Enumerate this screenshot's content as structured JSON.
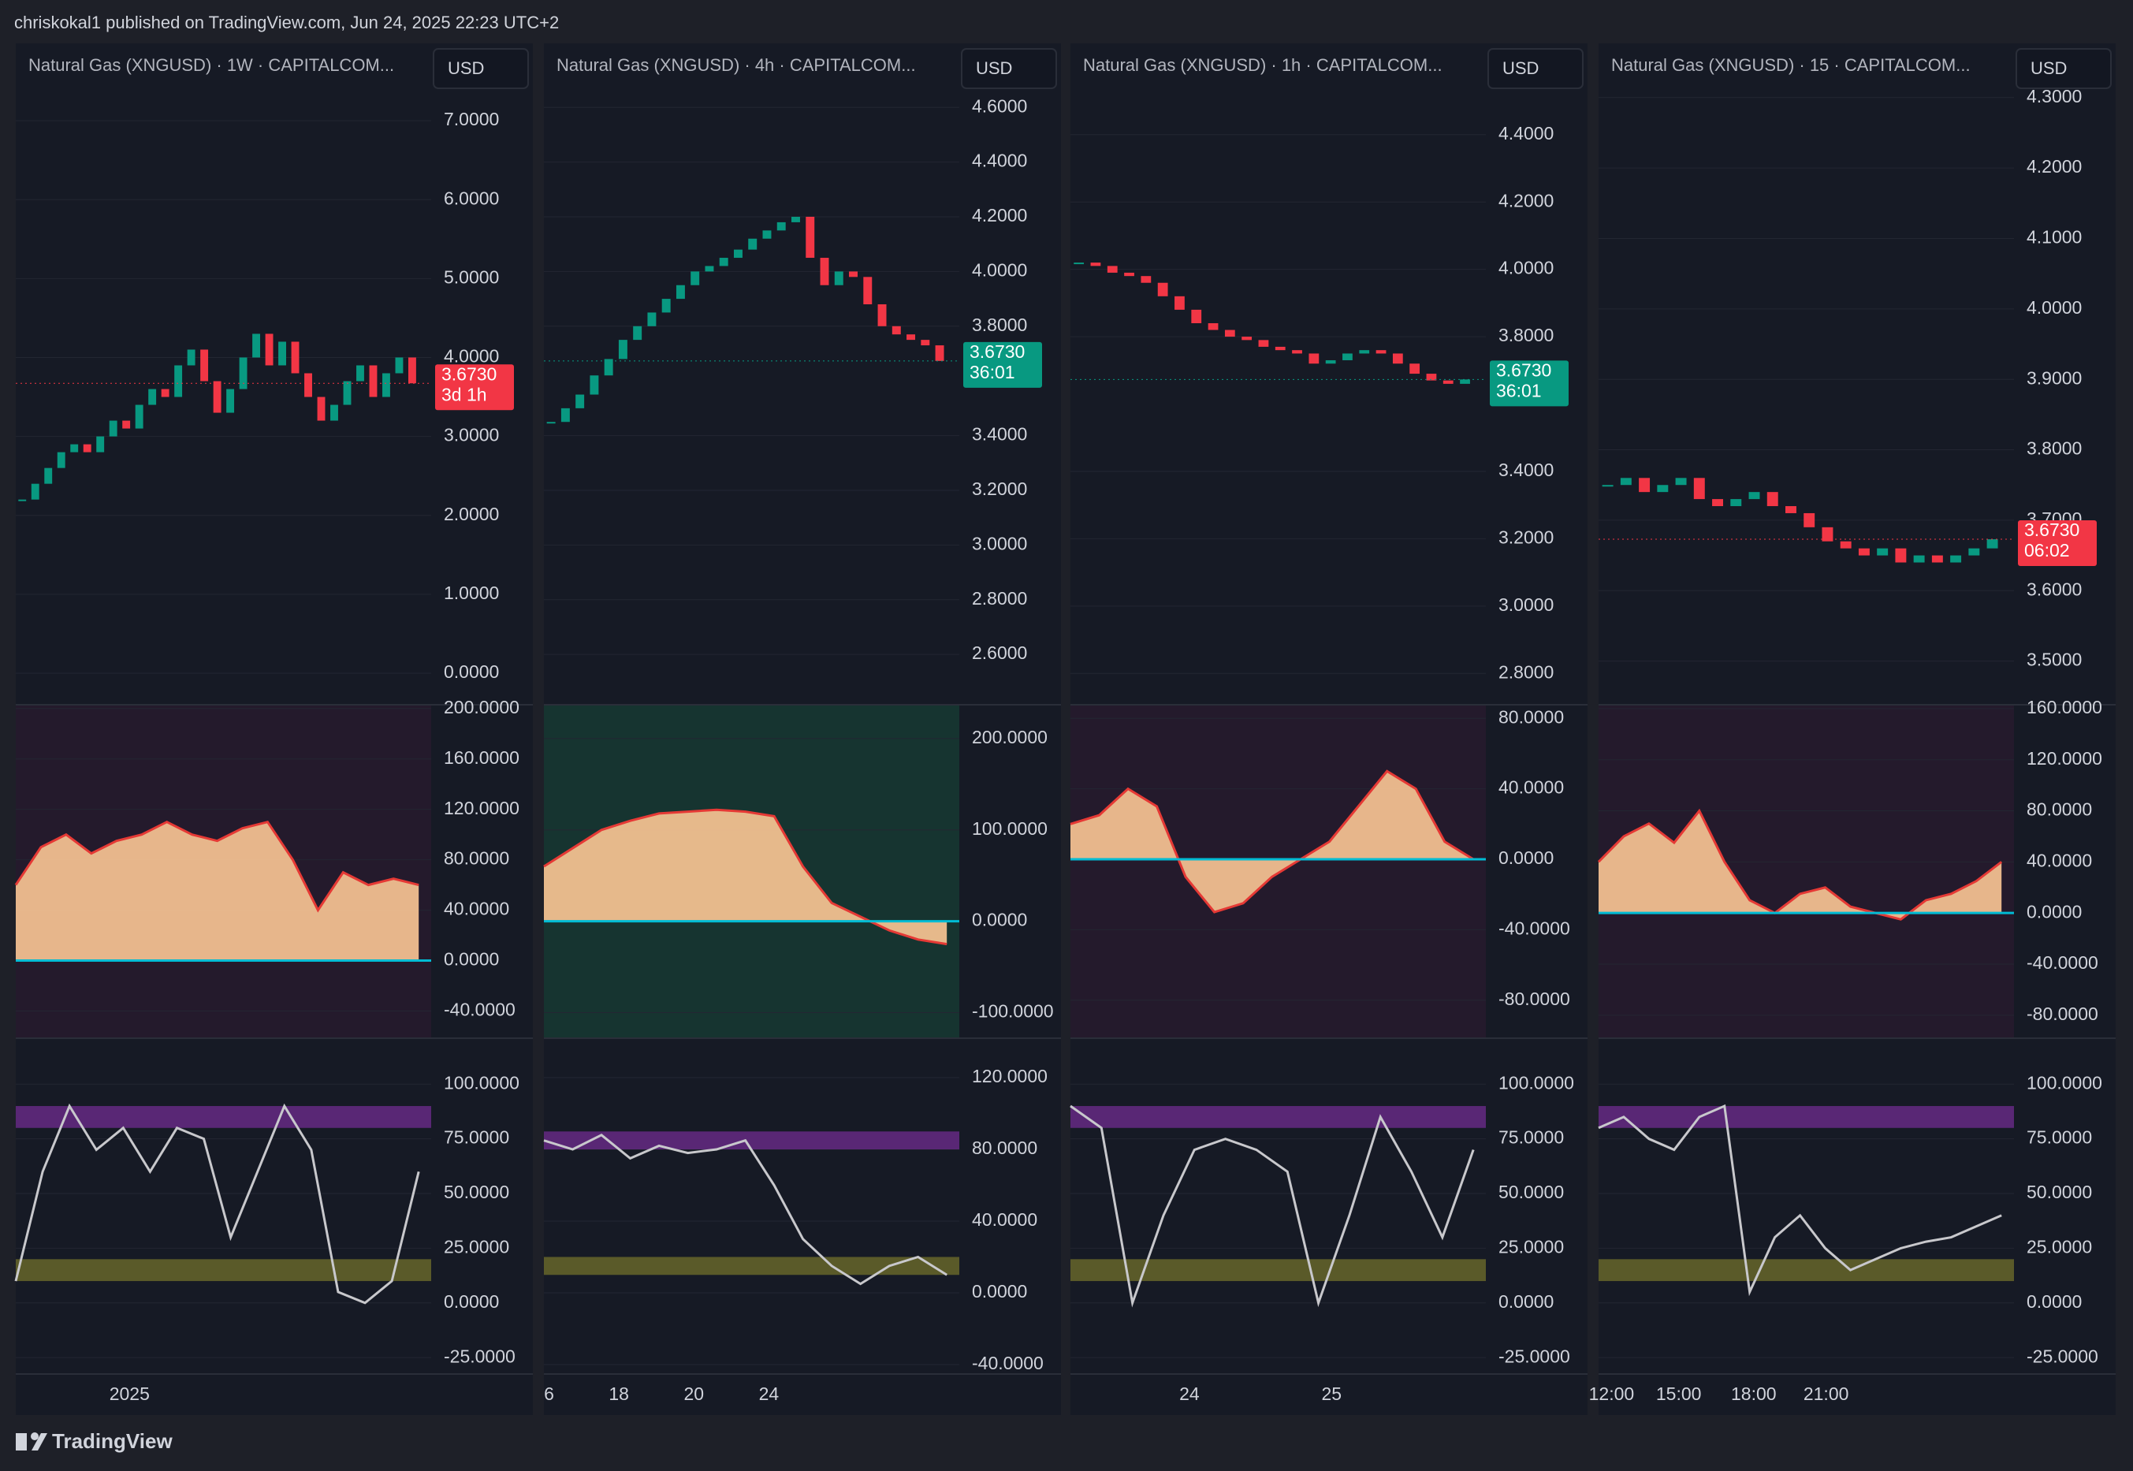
{
  "header": {
    "text": "chriskokal1 published on TradingView.com, Jun 24, 2025 22:23 UTC+2"
  },
  "footer": {
    "brand": "TradingView"
  },
  "panels": [
    {
      "title": "Natural Gas (XNGUSD) · 1W · CAPITALCOM...",
      "currency": "USD",
      "price": {
        "ylim": [
          -0.4,
          7.98
        ],
        "yticks": [
          {
            "value": 7,
            "label": "7.0000"
          },
          {
            "value": 6,
            "label": "6.0000"
          },
          {
            "value": 5,
            "label": "5.0000"
          },
          {
            "value": 4,
            "label": "4.0000"
          },
          {
            "value": 3,
            "label": "3.0000"
          },
          {
            "value": 2,
            "label": "2.0000"
          },
          {
            "value": 1,
            "label": "1.0000"
          },
          {
            "value": 0,
            "label": "0.0000"
          }
        ],
        "close": [
          2.2,
          2.4,
          2.6,
          2.8,
          2.9,
          2.8,
          3.0,
          3.2,
          3.1,
          3.4,
          3.6,
          3.5,
          3.9,
          4.1,
          3.7,
          3.3,
          3.6,
          4.0,
          4.3,
          3.9,
          4.2,
          3.8,
          3.5,
          3.2,
          3.4,
          3.7,
          3.9,
          3.5,
          3.8,
          4.0,
          3.673
        ],
        "last_price": {
          "value": 3.673,
          "label": "3.6730"
        },
        "countdown": "3d 1h",
        "tag_color": "#f23645"
      },
      "osc": {
        "ylim": [
          -61.6,
          203
        ],
        "yticks": [
          {
            "value": 200,
            "label": "200.0000"
          },
          {
            "value": 160,
            "label": "160.0000"
          },
          {
            "value": 120,
            "label": "120.0000"
          },
          {
            "value": 80,
            "label": "80.0000"
          },
          {
            "value": 40,
            "label": "40.0000"
          },
          {
            "value": 0,
            "label": "0.0000"
          },
          {
            "value": -40,
            "label": "-40.0000"
          }
        ],
        "values": [
          60,
          90,
          100,
          85,
          95,
          100,
          110,
          100,
          95,
          105,
          110,
          80,
          40,
          70,
          60,
          65,
          60
        ]
      },
      "stoch": {
        "ylim": [
          -32.5,
          121
        ],
        "yticks": [
          {
            "value": 100,
            "label": "100.0000"
          },
          {
            "value": 75,
            "label": "75.0000"
          },
          {
            "value": 50,
            "label": "50.0000"
          },
          {
            "value": 25,
            "label": "25.0000"
          },
          {
            "value": 0,
            "label": "0.0000"
          },
          {
            "value": -25,
            "label": "-25.0000"
          }
        ],
        "values": [
          10,
          60,
          90,
          70,
          80,
          60,
          80,
          75,
          30,
          60,
          90,
          70,
          5,
          0,
          10,
          60
        ]
      },
      "time_labels": [
        "2025"
      ]
    },
    {
      "title": "Natural Gas (XNGUSD) · 4h · CAPITALCOM...",
      "currency": "USD",
      "price": {
        "ylim": [
          2.416,
          4.834
        ],
        "yticks": [
          {
            "value": 4.6,
            "label": "4.6000"
          },
          {
            "value": 4.4,
            "label": "4.4000"
          },
          {
            "value": 4.2,
            "label": "4.2000"
          },
          {
            "value": 4.0,
            "label": "4.0000"
          },
          {
            "value": 3.8,
            "label": "3.8000"
          },
          {
            "value": 3.4,
            "label": "3.4000"
          },
          {
            "value": 3.2,
            "label": "3.2000"
          },
          {
            "value": 3.0,
            "label": "3.0000"
          },
          {
            "value": 2.8,
            "label": "2.8000"
          },
          {
            "value": 2.6,
            "label": "2.6000"
          }
        ],
        "close": [
          3.45,
          3.5,
          3.55,
          3.62,
          3.68,
          3.75,
          3.8,
          3.85,
          3.9,
          3.95,
          4.0,
          4.02,
          4.05,
          4.08,
          4.12,
          4.15,
          4.18,
          4.2,
          4.05,
          3.95,
          4.0,
          3.98,
          3.88,
          3.8,
          3.77,
          3.75,
          3.73,
          3.673
        ],
        "last_price": {
          "value": 3.673,
          "label": "3.6730"
        },
        "countdown": "36:01",
        "tag_color": "#089981"
      },
      "osc": {
        "ylim": [
          -128,
          237
        ],
        "yticks": [
          {
            "value": 200,
            "label": "200.0000"
          },
          {
            "value": 100,
            "label": "100.0000"
          },
          {
            "value": 0,
            "label": "0.0000"
          },
          {
            "value": -100,
            "label": "-100.0000"
          }
        ],
        "values": [
          60,
          80,
          100,
          110,
          118,
          120,
          122,
          120,
          115,
          60,
          20,
          5,
          -10,
          -20,
          -25
        ]
      },
      "stoch": {
        "ylim": [
          -45.3,
          142
        ],
        "yticks": [
          {
            "value": 120,
            "label": "120.0000"
          },
          {
            "value": 80,
            "label": "80.0000"
          },
          {
            "value": 40,
            "label": "40.0000"
          },
          {
            "value": 0,
            "label": "0.0000"
          },
          {
            "value": -40,
            "label": "-40.0000"
          }
        ],
        "values": [
          85,
          80,
          88,
          75,
          82,
          78,
          80,
          85,
          60,
          30,
          15,
          5,
          15,
          20,
          10
        ]
      },
      "time_labels": [
        "6",
        "18",
        "20",
        "24"
      ]
    },
    {
      "title": "Natural Gas (XNGUSD) · 1h · CAPITALCOM...",
      "currency": "USD",
      "price": {
        "ylim": [
          2.707,
          4.671
        ],
        "yticks": [
          {
            "value": 4.4,
            "label": "4.4000"
          },
          {
            "value": 4.2,
            "label": "4.2000"
          },
          {
            "value": 4.0,
            "label": "4.0000"
          },
          {
            "value": 3.8,
            "label": "3.8000"
          },
          {
            "value": 3.4,
            "label": "3.4000"
          },
          {
            "value": 3.2,
            "label": "3.2000"
          },
          {
            "value": 3.0,
            "label": "3.0000"
          },
          {
            "value": 2.8,
            "label": "2.8000"
          }
        ],
        "close": [
          4.02,
          4.01,
          3.99,
          3.98,
          3.96,
          3.92,
          3.88,
          3.84,
          3.82,
          3.8,
          3.79,
          3.77,
          3.76,
          3.75,
          3.72,
          3.73,
          3.75,
          3.76,
          3.75,
          3.72,
          3.69,
          3.67,
          3.66,
          3.673
        ],
        "last_price": {
          "value": 3.673,
          "label": "3.6730"
        },
        "countdown": "36:01",
        "tag_color": "#089981"
      },
      "osc": {
        "ylim": [
          -101.6,
          87.7
        ],
        "yticks": [
          {
            "value": 80,
            "label": "80.0000"
          },
          {
            "value": 40,
            "label": "40.0000"
          },
          {
            "value": 0,
            "label": "0.0000"
          },
          {
            "value": -40,
            "label": "-40.0000"
          },
          {
            "value": -80,
            "label": "-80.0000"
          }
        ],
        "values": [
          20,
          25,
          40,
          30,
          -10,
          -30,
          -25,
          -10,
          0,
          10,
          30,
          50,
          40,
          10,
          0
        ]
      },
      "stoch": {
        "ylim": [
          -32.5,
          121
        ],
        "yticks": [
          {
            "value": 100,
            "label": "100.0000"
          },
          {
            "value": 75,
            "label": "75.0000"
          },
          {
            "value": 50,
            "label": "50.0000"
          },
          {
            "value": 25,
            "label": "25.0000"
          },
          {
            "value": 0,
            "label": "0.0000"
          },
          {
            "value": -25,
            "label": "-25.0000"
          }
        ],
        "values": [
          90,
          80,
          0,
          40,
          70,
          75,
          70,
          60,
          0,
          40,
          85,
          60,
          30,
          70
        ]
      },
      "time_labels": [
        "24",
        "25"
      ]
    },
    {
      "title": "Natural Gas (XNGUSD) · 15 · CAPITALCOM...",
      "currency": "USD",
      "price": {
        "ylim": [
          3.438,
          4.377
        ],
        "yticks": [
          {
            "value": 4.3,
            "label": "4.3000"
          },
          {
            "value": 4.2,
            "label": "4.2000"
          },
          {
            "value": 4.1,
            "label": "4.1000"
          },
          {
            "value": 4.0,
            "label": "4.0000"
          },
          {
            "value": 3.9,
            "label": "3.9000"
          },
          {
            "value": 3.8,
            "label": "3.8000"
          },
          {
            "value": 3.7,
            "label": "3.7000"
          },
          {
            "value": 3.6,
            "label": "3.6000"
          },
          {
            "value": 3.5,
            "label": "3.5000"
          }
        ],
        "close": [
          3.75,
          3.76,
          3.74,
          3.75,
          3.76,
          3.73,
          3.72,
          3.73,
          3.74,
          3.72,
          3.71,
          3.69,
          3.67,
          3.66,
          3.65,
          3.66,
          3.64,
          3.65,
          3.64,
          3.65,
          3.66,
          3.673
        ],
        "last_price": {
          "value": 3.673,
          "label": "3.6730"
        },
        "countdown": "06:02",
        "tag_color": "#f23645"
      },
      "osc": {
        "ylim": [
          -98,
          163
        ],
        "yticks": [
          {
            "value": 160,
            "label": "160.0000"
          },
          {
            "value": 120,
            "label": "120.0000"
          },
          {
            "value": 80,
            "label": "80.0000"
          },
          {
            "value": 40,
            "label": "40.0000"
          },
          {
            "value": 0,
            "label": "0.0000"
          },
          {
            "value": -40,
            "label": "-40.0000"
          },
          {
            "value": -80,
            "label": "-80.0000"
          }
        ],
        "values": [
          40,
          60,
          70,
          55,
          80,
          40,
          10,
          0,
          15,
          20,
          5,
          0,
          -5,
          10,
          15,
          25,
          40
        ]
      },
      "stoch": {
        "ylim": [
          -32.5,
          121
        ],
        "yticks": [
          {
            "value": 100,
            "label": "100.0000"
          },
          {
            "value": 75,
            "label": "75.0000"
          },
          {
            "value": 50,
            "label": "50.0000"
          },
          {
            "value": 25,
            "label": "25.0000"
          },
          {
            "value": 0,
            "label": "0.0000"
          },
          {
            "value": -25,
            "label": "-25.0000"
          }
        ],
        "values": [
          80,
          85,
          75,
          70,
          85,
          90,
          5,
          30,
          40,
          25,
          15,
          20,
          25,
          28,
          30,
          35,
          40
        ]
      },
      "time_labels": [
        "12:00",
        "15:00",
        "18:00",
        "21:00"
      ]
    }
  ]
}
